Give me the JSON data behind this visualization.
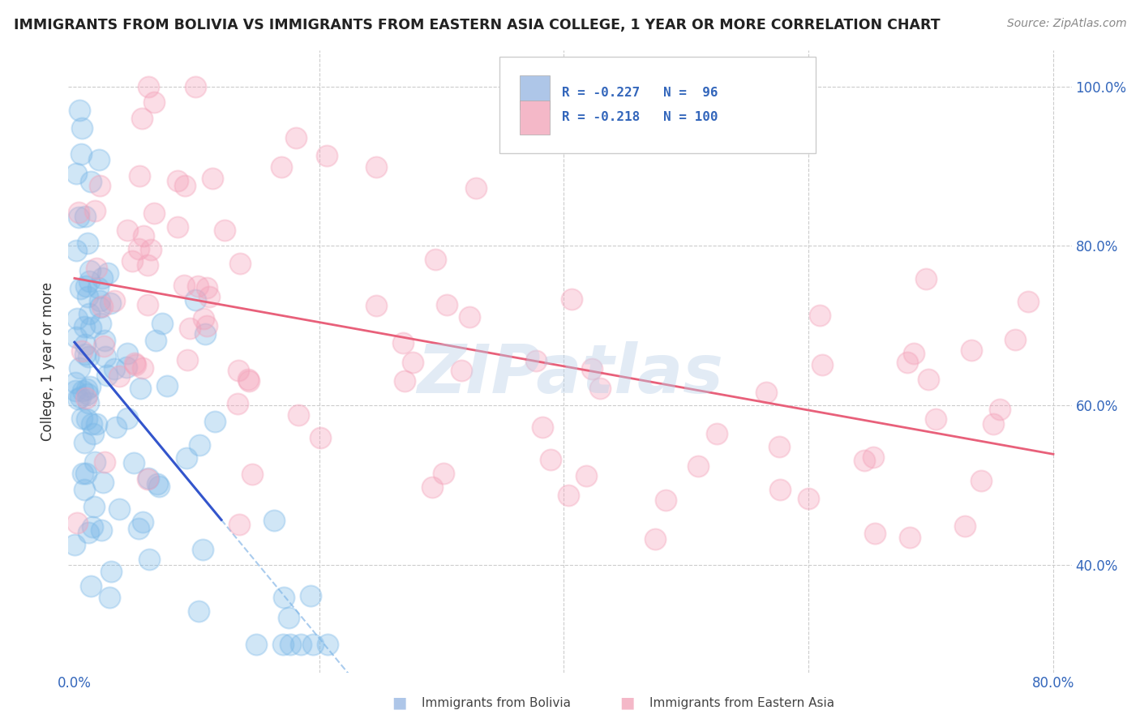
{
  "title": "IMMIGRANTS FROM BOLIVIA VS IMMIGRANTS FROM EASTERN ASIA COLLEGE, 1 YEAR OR MORE CORRELATION CHART",
  "source": "Source: ZipAtlas.com",
  "ylabel": "College, 1 year or more",
  "xlim_display": [
    0.0,
    0.8
  ],
  "ylim_display": [
    0.28,
    1.02
  ],
  "xtick_vals": [
    0.0,
    0.2,
    0.4,
    0.6,
    0.8
  ],
  "ytick_vals": [
    0.4,
    0.6,
    0.8,
    1.0
  ],
  "bolivia_color": "#7ab8e8",
  "eastern_asia_color": "#f4a0b8",
  "bolivia_trend_color": "#3355cc",
  "eastern_asia_trend_color": "#e8607a",
  "dashed_line_color": "#aaccee",
  "watermark": "ZIPatlas",
  "background_color": "#ffffff",
  "grid_color": "#cccccc",
  "legend_box_color": "#aec6e8",
  "legend_pink_color": "#f4b8c8",
  "tick_color": "#3366bb",
  "title_color": "#222222",
  "source_color": "#888888"
}
